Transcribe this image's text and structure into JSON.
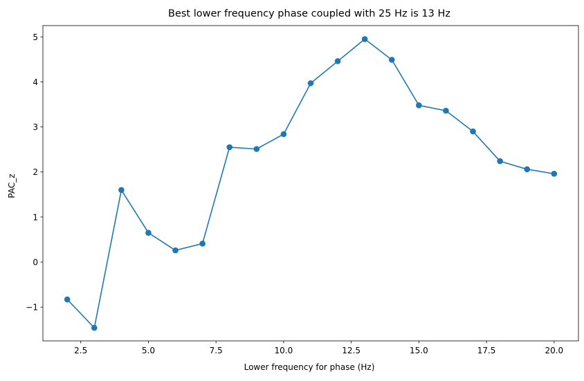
{
  "chart_data": {
    "type": "line",
    "title": "Best lower frequency phase coupled with 25 Hz is 13 Hz",
    "xlabel": "Lower frequency for phase (Hz)",
    "ylabel": "PAC_z",
    "xlim": [
      1.1,
      20.9
    ],
    "ylim": [
      -1.75,
      5.25
    ],
    "xticks": [
      2.5,
      5.0,
      7.5,
      10.0,
      12.5,
      15.0,
      17.5,
      20.0
    ],
    "xtick_labels": [
      "2.5",
      "5.0",
      "7.5",
      "10.0",
      "12.5",
      "15.0",
      "17.5",
      "20.0"
    ],
    "yticks": [
      -1,
      0,
      1,
      2,
      3,
      4,
      5
    ],
    "ytick_labels": [
      "−1",
      "0",
      "1",
      "2",
      "3",
      "4",
      "5"
    ],
    "grid": false,
    "color": "#1f77b4",
    "series": [
      {
        "x": [
          2,
          3,
          4,
          5,
          6,
          7,
          8,
          9,
          10,
          11,
          12,
          13,
          14,
          15,
          16,
          17,
          18,
          19,
          20
        ],
        "y": [
          -0.83,
          -1.46,
          1.6,
          0.65,
          0.26,
          0.41,
          2.55,
          2.51,
          2.84,
          3.97,
          4.46,
          4.95,
          4.49,
          3.48,
          3.36,
          2.9,
          2.24,
          2.06,
          1.96
        ]
      }
    ]
  }
}
